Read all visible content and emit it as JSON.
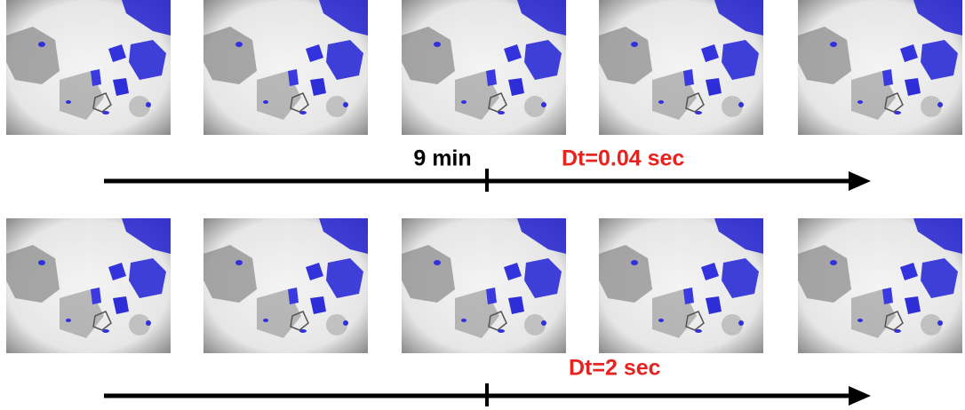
{
  "rows": [
    {
      "time_marker": "9 min",
      "label": "Dt=0.04 sec"
    },
    {
      "label": "Dt=2 sec"
    }
  ]
}
